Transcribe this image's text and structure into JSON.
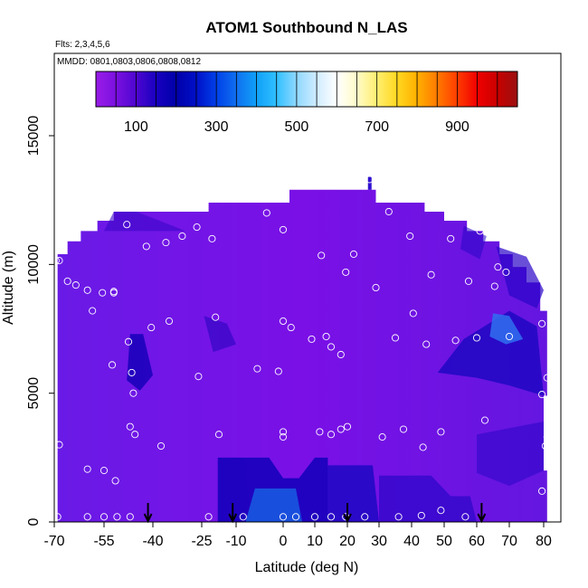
{
  "chart_data": {
    "type": "heatmap",
    "title": "ATOM1 Southbound N_LAS",
    "annotations": [
      "Flts: 2,3,4,5,6",
      "MMDD: 0801,0803,0806,0808,0812"
    ],
    "xlabel": "Latitude (deg N)",
    "ylabel": "Altitude (m)",
    "xlim": [
      -70,
      80
    ],
    "ylim": [
      0,
      17000
    ],
    "x_ticks": [
      -70,
      -55,
      -40,
      -25,
      -10,
      0,
      10,
      20,
      30,
      40,
      50,
      60,
      70,
      80
    ],
    "x_tick_labels": [
      "-70",
      "-55",
      "-40",
      "-25",
      "-10",
      "0",
      "10",
      "20",
      "30",
      "40",
      "50",
      "60",
      "70",
      "80"
    ],
    "y_ticks": [
      0,
      5000,
      10000,
      15000
    ],
    "y_tick_labels": [
      "0",
      "5000",
      "10000",
      "15000"
    ],
    "colorbar": {
      "range": [
        0,
        1050
      ],
      "tick_values": [
        100,
        300,
        500,
        700,
        900
      ],
      "tick_labels": [
        "100",
        "300",
        "500",
        "700",
        "900"
      ],
      "colors": [
        "#9a1de8",
        "#7a10e0",
        "#4e06d0",
        "#1800c0",
        "#0000a8",
        "#0010c8",
        "#0040e8",
        "#1070f0",
        "#10a0f8",
        "#30c0ff",
        "#90d8ff",
        "#d0ecff",
        "#ffffff",
        "#fffbc8",
        "#ffee70",
        "#ffd820",
        "#ffb000",
        "#ff7a00",
        "#ff3c00",
        "#f00000",
        "#c80000",
        "#9a1010"
      ]
    },
    "grid": false,
    "value_note_bulk": 60,
    "sample_points": [
      {
        "x": -69.5,
        "y": 10150
      },
      {
        "x": -68.5,
        "y": 10150
      },
      {
        "x": -68.5,
        "y": 3000
      },
      {
        "x": -69,
        "y": 200
      },
      {
        "x": -66,
        "y": 9350
      },
      {
        "x": -63.5,
        "y": 9200
      },
      {
        "x": -60,
        "y": 9000
      },
      {
        "x": -58.5,
        "y": 8200
      },
      {
        "x": -55.5,
        "y": 8900
      },
      {
        "x": -52,
        "y": 8950
      },
      {
        "x": -52,
        "y": 8900
      },
      {
        "x": -47.5,
        "y": 7000
      },
      {
        "x": -52.5,
        "y": 6100
      },
      {
        "x": -46.5,
        "y": 5800
      },
      {
        "x": -46,
        "y": 5000
      },
      {
        "x": -47,
        "y": 3700
      },
      {
        "x": -45.5,
        "y": 3400
      },
      {
        "x": -60,
        "y": 2050
      },
      {
        "x": -55,
        "y": 2000
      },
      {
        "x": -51.5,
        "y": 1600
      },
      {
        "x": -60,
        "y": 200
      },
      {
        "x": -55,
        "y": 200
      },
      {
        "x": -51,
        "y": 200
      },
      {
        "x": -47,
        "y": 200
      },
      {
        "x": -48,
        "y": 11550
      },
      {
        "x": -42,
        "y": 10700
      },
      {
        "x": -36,
        "y": 10850
      },
      {
        "x": -31,
        "y": 11100
      },
      {
        "x": -26.5,
        "y": 11450
      },
      {
        "x": -20.5,
        "y": 11000
      },
      {
        "x": -40.5,
        "y": 7550
      },
      {
        "x": -35,
        "y": 7800
      },
      {
        "x": -19,
        "y": 7950
      },
      {
        "x": -26,
        "y": 5650
      },
      {
        "x": -37.5,
        "y": 2950
      },
      {
        "x": -17.5,
        "y": 3400
      },
      {
        "x": -22,
        "y": 200
      },
      {
        "x": -3.5,
        "y": 12000
      },
      {
        "x": 0,
        "y": 11350
      },
      {
        "x": 0,
        "y": 7800
      },
      {
        "x": 2.5,
        "y": 7550
      },
      {
        "x": -5.5,
        "y": 5950
      },
      {
        "x": -1,
        "y": 5850
      },
      {
        "x": 0,
        "y": 3500
      },
      {
        "x": 0,
        "y": 3300
      },
      {
        "x": 9,
        "y": 7100
      },
      {
        "x": 13.5,
        "y": 7200
      },
      {
        "x": 15,
        "y": 6800
      },
      {
        "x": 18,
        "y": 6500
      },
      {
        "x": 12,
        "y": 10350
      },
      {
        "x": 19.5,
        "y": 9700
      },
      {
        "x": 29,
        "y": 9100
      },
      {
        "x": 33,
        "y": 12050
      },
      {
        "x": 39.5,
        "y": 11100
      },
      {
        "x": 52,
        "y": 11000
      },
      {
        "x": 61,
        "y": 11300
      },
      {
        "x": 66.5,
        "y": 9900
      },
      {
        "x": 69,
        "y": 9700
      },
      {
        "x": 57.5,
        "y": 9350
      },
      {
        "x": 65.5,
        "y": 9150
      },
      {
        "x": 40.5,
        "y": 8100
      },
      {
        "x": 35,
        "y": 7150
      },
      {
        "x": 44.5,
        "y": 6900
      },
      {
        "x": 53.5,
        "y": 7050
      },
      {
        "x": 60,
        "y": 7150
      },
      {
        "x": 70,
        "y": 7200
      },
      {
        "x": 79.5,
        "y": 7700
      },
      {
        "x": 81,
        "y": 5600
      },
      {
        "x": 79.5,
        "y": 4950
      },
      {
        "x": 62.5,
        "y": 3950
      },
      {
        "x": 81,
        "y": 3300
      },
      {
        "x": 80.5,
        "y": 2950
      },
      {
        "x": 31,
        "y": 3300
      },
      {
        "x": 37.5,
        "y": 3600
      },
      {
        "x": 43.5,
        "y": 2900
      },
      {
        "x": 49,
        "y": 3500
      },
      {
        "x": 11.5,
        "y": 3500
      },
      {
        "x": 15,
        "y": 3400
      },
      {
        "x": 18,
        "y": 3600
      },
      {
        "x": 20,
        "y": 3700
      },
      {
        "x": 79.5,
        "y": 1200
      },
      {
        "x": -8.5,
        "y": 200
      },
      {
        "x": 0,
        "y": 200
      },
      {
        "x": 4,
        "y": 200
      },
      {
        "x": 10,
        "y": 200
      },
      {
        "x": 15,
        "y": 200
      },
      {
        "x": 19.5,
        "y": 200
      },
      {
        "x": 25.5,
        "y": 200
      },
      {
        "x": 36,
        "y": 200
      },
      {
        "x": 43,
        "y": 250
      },
      {
        "x": 49,
        "y": 450
      },
      {
        "x": 56.5,
        "y": 200
      },
      {
        "x": 27,
        "y": 13300
      },
      {
        "x": 46,
        "y": 9600
      },
      {
        "x": 22,
        "y": 10400
      }
    ],
    "arrow_latitudes": [
      -41.5,
      -11.5,
      20,
      61.5
    ]
  }
}
